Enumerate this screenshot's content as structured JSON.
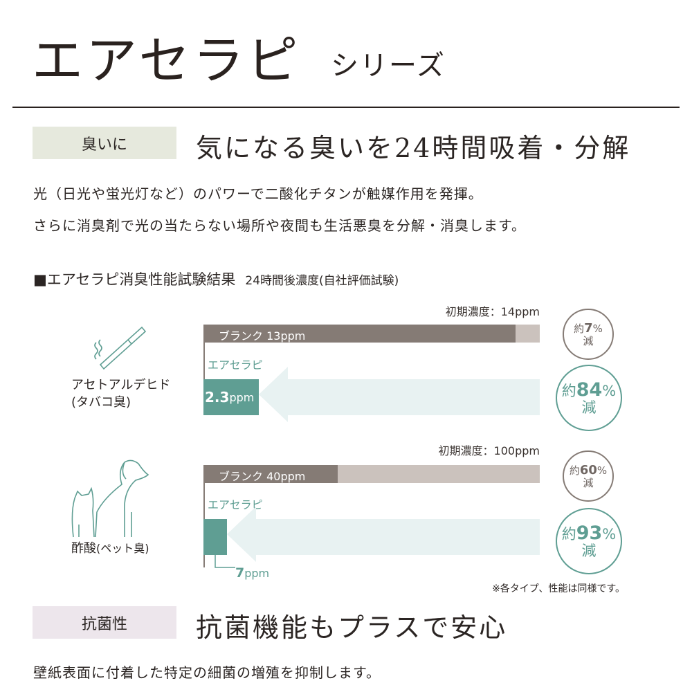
{
  "header": {
    "title": "エアセラピ",
    "subtitle": "シリーズ"
  },
  "section1": {
    "tag": "臭いに",
    "heading": "気になる臭いを24時間吸着・分解",
    "tag_color": "#e6e9dd",
    "body": [
      "光（日光や蛍光灯など）のパワーで二酸化チタンが触媒作用を発揮。",
      "さらに消臭剤で光の当たらない場所や夜間も生活悪臭を分解・消臭します。"
    ]
  },
  "test": {
    "title": "■エアセラピ消臭性能試験結果",
    "note": "24時間後濃度(自社評価試験)",
    "colors": {
      "blank": "#857b75",
      "initial": "#cbc2bd",
      "airtherapy": "#5f9e93",
      "arrow": "#e8f2f2"
    },
    "rows": [
      {
        "subject": "アセトアルデヒド",
        "subject_sub": "(タバコ臭)",
        "icon": "cigarette-icon",
        "initial_label": "初期濃度：14ppm",
        "initial": 14,
        "blank_label": "ブランク 13ppm",
        "blank": 13,
        "product_label": "エアセラピ",
        "product_value_num": "2.3",
        "product_value_unit": "ppm",
        "product": 2.3,
        "blank_reduction": {
          "prefix": "約",
          "value": "7",
          "unit": "%",
          "suffix": "減"
        },
        "product_reduction": {
          "prefix": "約",
          "value": "84",
          "unit": "%",
          "suffix": "減"
        }
      },
      {
        "subject": "酢酸",
        "subject_sub": "(ペット臭)",
        "icon": "dog-cat-icon",
        "initial_label": "初期濃度：100ppm",
        "initial": 100,
        "blank_label": "ブランク 40ppm",
        "blank": 40,
        "product_label": "エアセラピ",
        "product_value_num": "7",
        "product_value_unit": "ppm",
        "product": 7,
        "blank_reduction": {
          "prefix": "約",
          "value": "60",
          "unit": "%",
          "suffix": "減"
        },
        "product_reduction": {
          "prefix": "約",
          "value": "93",
          "unit": "%",
          "suffix": "減"
        }
      }
    ],
    "footnote": "※各タイプ、性能は同様です。"
  },
  "section2": {
    "tag": "抗菌性",
    "heading": "抗菌機能もプラスで安心",
    "tag_color": "#ede6ec",
    "body": "壁紙表面に付着した特定の細菌の増殖を抑制します。"
  }
}
